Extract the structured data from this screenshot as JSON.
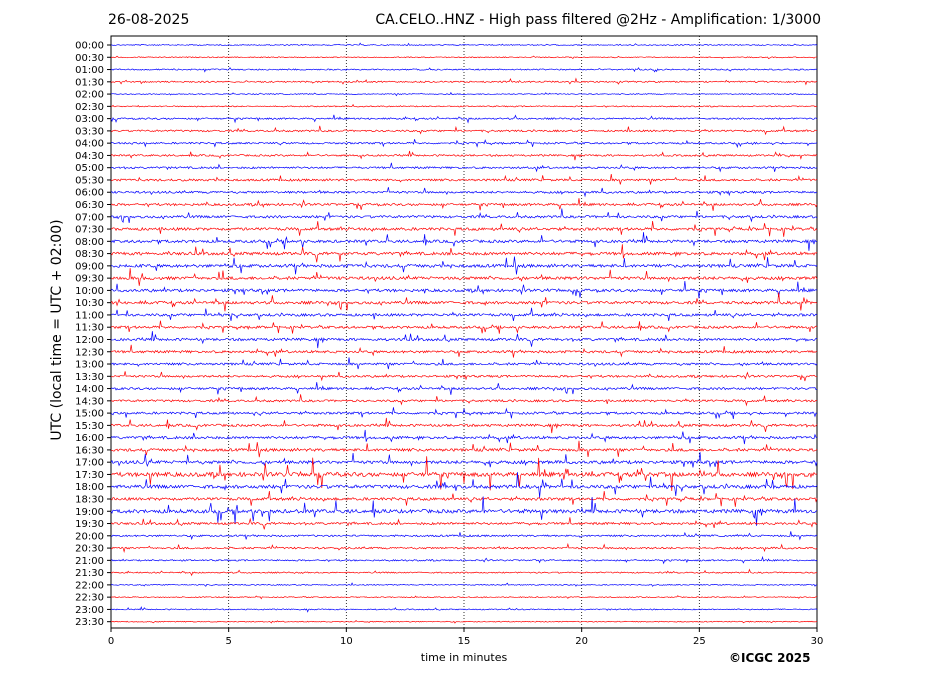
{
  "header": {
    "date": "26-08-2025",
    "title": "CA.CELO..HNZ - High pass filtered @2Hz - Amplification: 1/3000"
  },
  "footer": {
    "copyright": "©ICGC 2025"
  },
  "chart_data": {
    "type": "line",
    "title": "CA.CELO..HNZ - High pass filtered @2Hz - Amplification: 1/3000",
    "xlabel": "time in minutes",
    "ylabel": "UTC (local time = UTC + 02:00)",
    "xlim": [
      0,
      30
    ],
    "x_ticks": [
      "0",
      "5",
      "10",
      "15",
      "20",
      "25",
      "30"
    ],
    "vertical_gridlines_at": [
      5,
      10,
      15,
      20,
      25
    ],
    "grid": "vertical dotted",
    "row_colors": [
      "#ff0000",
      "#0000ff"
    ],
    "rows": [
      {
        "label": "00:00",
        "color": "blue",
        "activity": 0.05
      },
      {
        "label": "00:30",
        "color": "red",
        "activity": 0.05
      },
      {
        "label": "01:00",
        "color": "blue",
        "activity": 0.15
      },
      {
        "label": "01:30",
        "color": "red",
        "activity": 0.2
      },
      {
        "label": "02:00",
        "color": "blue",
        "activity": 0.05
      },
      {
        "label": "02:30",
        "color": "red",
        "activity": 0.1
      },
      {
        "label": "03:00",
        "color": "blue",
        "activity": 0.25
      },
      {
        "label": "03:30",
        "color": "red",
        "activity": 0.3
      },
      {
        "label": "04:00",
        "color": "blue",
        "activity": 0.3
      },
      {
        "label": "04:30",
        "color": "red",
        "activity": 0.3
      },
      {
        "label": "05:00",
        "color": "blue",
        "activity": 0.35
      },
      {
        "label": "05:30",
        "color": "red",
        "activity": 0.4
      },
      {
        "label": "06:00",
        "color": "blue",
        "activity": 0.4
      },
      {
        "label": "06:30",
        "color": "red",
        "activity": 0.45
      },
      {
        "label": "07:00",
        "color": "blue",
        "activity": 0.5
      },
      {
        "label": "07:30",
        "color": "red",
        "activity": 0.6
      },
      {
        "label": "08:00",
        "color": "blue",
        "activity": 0.6
      },
      {
        "label": "08:30",
        "color": "red",
        "activity": 0.65
      },
      {
        "label": "09:00",
        "color": "blue",
        "activity": 0.7
      },
      {
        "label": "09:30",
        "color": "red",
        "activity": 0.65
      },
      {
        "label": "10:00",
        "color": "blue",
        "activity": 0.6
      },
      {
        "label": "10:30",
        "color": "red",
        "activity": 0.6
      },
      {
        "label": "11:00",
        "color": "blue",
        "activity": 0.55
      },
      {
        "label": "11:30",
        "color": "red",
        "activity": 0.5
      },
      {
        "label": "12:00",
        "color": "blue",
        "activity": 0.55
      },
      {
        "label": "12:30",
        "color": "red",
        "activity": 0.5
      },
      {
        "label": "13:00",
        "color": "blue",
        "activity": 0.45
      },
      {
        "label": "13:30",
        "color": "red",
        "activity": 0.4
      },
      {
        "label": "14:00",
        "color": "blue",
        "activity": 0.45
      },
      {
        "label": "14:30",
        "color": "red",
        "activity": 0.4
      },
      {
        "label": "15:00",
        "color": "blue",
        "activity": 0.45
      },
      {
        "label": "15:30",
        "color": "red",
        "activity": 0.5
      },
      {
        "label": "16:00",
        "color": "blue",
        "activity": 0.55
      },
      {
        "label": "16:30",
        "color": "red",
        "activity": 0.6
      },
      {
        "label": "17:00",
        "color": "blue",
        "activity": 0.7
      },
      {
        "label": "17:30",
        "color": "red",
        "activity": 1.0
      },
      {
        "label": "18:00",
        "color": "blue",
        "activity": 0.8
      },
      {
        "label": "18:30",
        "color": "red",
        "activity": 0.6
      },
      {
        "label": "19:00",
        "color": "blue",
        "activity": 0.85
      },
      {
        "label": "19:30",
        "color": "red",
        "activity": 0.45
      },
      {
        "label": "20:00",
        "color": "blue",
        "activity": 0.3
      },
      {
        "label": "20:30",
        "color": "red",
        "activity": 0.3
      },
      {
        "label": "21:00",
        "color": "blue",
        "activity": 0.2
      },
      {
        "label": "21:30",
        "color": "red",
        "activity": 0.15
      },
      {
        "label": "22:00",
        "color": "blue",
        "activity": 0.05
      },
      {
        "label": "22:30",
        "color": "red",
        "activity": 0.05
      },
      {
        "label": "23:00",
        "color": "blue",
        "activity": 0.1
      },
      {
        "label": "23:30",
        "color": "red",
        "activity": 0.05
      }
    ]
  }
}
